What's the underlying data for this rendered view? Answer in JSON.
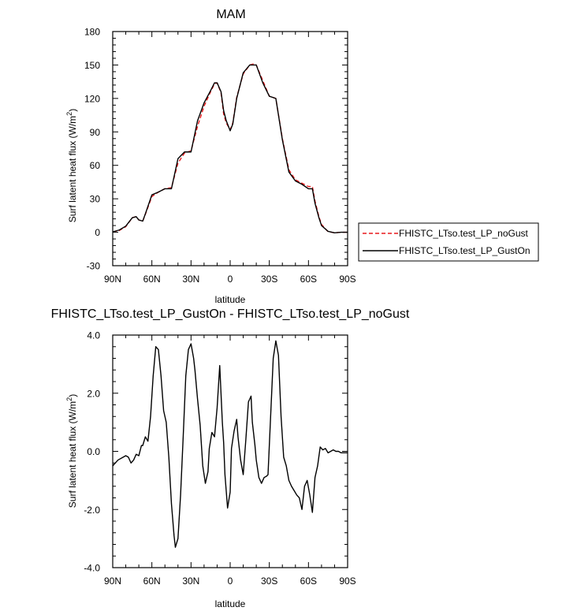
{
  "chart_data": [
    {
      "type": "line",
      "title": "MAM",
      "xlabel": "latitude",
      "ylabel_main": "Surf latent heat flux (W/m",
      "ylabel_sup": "2",
      "ylabel_close": ")",
      "xlim": [
        -90,
        90
      ],
      "ylim": [
        -30,
        180
      ],
      "x_ticks": [
        -90,
        -60,
        -30,
        0,
        30,
        60,
        90
      ],
      "x_ticklabels": [
        "90N",
        "60N",
        "30N",
        "0",
        "30S",
        "60S",
        "90S"
      ],
      "y_ticks": [
        -30,
        0,
        30,
        60,
        90,
        120,
        150,
        180
      ],
      "y_ticklabels": [
        "-30",
        "0",
        "30",
        "60",
        "90",
        "120",
        "150",
        "180"
      ],
      "legend_position": "outside-right",
      "grid": false,
      "x": [
        -90,
        -85,
        -80,
        -75,
        -72,
        -70,
        -67,
        -65,
        -60,
        -55,
        -50,
        -45,
        -40,
        -35,
        -30,
        -25,
        -20,
        -15,
        -12,
        -10,
        -7,
        -5,
        -3,
        0,
        2,
        5,
        10,
        15,
        18,
        20,
        25,
        30,
        35,
        40,
        45,
        50,
        55,
        60,
        63,
        65,
        68,
        70,
        75,
        80,
        85,
        90
      ],
      "series": [
        {
          "name": "FHISTC_LTso.test_LP_noGust",
          "color": "#e8191c",
          "dash": "dashed",
          "values": [
            0.2,
            1.5,
            5,
            13,
            14,
            11,
            10,
            16,
            32,
            36,
            39,
            40,
            62,
            71,
            73,
            95,
            113,
            126,
            133,
            134,
            125,
            106,
            98,
            92,
            98,
            121,
            142,
            150,
            151,
            150,
            136,
            122,
            120,
            84,
            56,
            47,
            44,
            41,
            41,
            28,
            14,
            7,
            0.5,
            -0.5,
            0,
            0
          ]
        },
        {
          "name": "FHISTC_LTso.test_LP_GustOn",
          "color": "#000000",
          "dash": "solid",
          "values": [
            0.4,
            2,
            5.5,
            13,
            14,
            11,
            10,
            16.5,
            33.5,
            36,
            39,
            39,
            66,
            72,
            72,
            100,
            116,
            127,
            134,
            134,
            126,
            109,
            100,
            91,
            97,
            120,
            143,
            150,
            150,
            150,
            134,
            122,
            120,
            83,
            54,
            46,
            43,
            39,
            39,
            26,
            13,
            6,
            0.8,
            -0.5,
            0,
            0
          ]
        }
      ]
    },
    {
      "type": "line",
      "title": "FHISTC_LTso.test_LP_GustOn - FHISTC_LTso.test_LP_noGust",
      "xlabel": "latitude",
      "ylabel_main": "Surf latent heat flux (W/m",
      "ylabel_sup": "2",
      "ylabel_close": ")",
      "xlim": [
        -90,
        90
      ],
      "ylim": [
        -4,
        4
      ],
      "x_ticks": [
        -90,
        -60,
        -30,
        0,
        30,
        60,
        90
      ],
      "x_ticklabels": [
        "90N",
        "60N",
        "30N",
        "0",
        "30S",
        "60S",
        "90S"
      ],
      "y_ticks": [
        -4,
        -2,
        0,
        2,
        4
      ],
      "y_ticklabels": [
        "-4.0",
        "-2.0",
        "0.0",
        "2.0",
        "4.0"
      ],
      "grid": false,
      "x": [
        -90,
        -86,
        -82,
        -80,
        -78,
        -76,
        -74,
        -72,
        -70,
        -68,
        -67,
        -65,
        -63,
        -61,
        -59,
        -57,
        -55,
        -53,
        -51,
        -49,
        -47,
        -45,
        -43,
        -42,
        -40,
        -38,
        -36,
        -34,
        -32,
        -30,
        -28,
        -27,
        -25,
        -23,
        -21,
        -19,
        -17,
        -16,
        -14,
        -12,
        -10,
        -8,
        -6,
        -5,
        -4,
        -2,
        0,
        1,
        3,
        5,
        6,
        8,
        10,
        12,
        14,
        16,
        17,
        19,
        20,
        22,
        24,
        26,
        28,
        29,
        31,
        33,
        35,
        37,
        39,
        41,
        43,
        45,
        47,
        49,
        51,
        53,
        55,
        57,
        59,
        61,
        63,
        65,
        67,
        69,
        71,
        73,
        75,
        77,
        79,
        81,
        83,
        85,
        87,
        90
      ],
      "series": [
        {
          "name": "",
          "color": "#000000",
          "dash": "solid",
          "values": [
            -0.5,
            -0.3,
            -0.2,
            -0.15,
            -0.2,
            -0.4,
            -0.3,
            -0.1,
            -0.15,
            0.2,
            0.2,
            0.5,
            0.35,
            1.2,
            2.6,
            3.6,
            3.5,
            2.6,
            1.4,
            1.0,
            -0.2,
            -1.8,
            -2.9,
            -3.3,
            -3.0,
            -1.5,
            0.5,
            2.6,
            3.5,
            3.7,
            3.2,
            2.8,
            1.8,
            0.9,
            -0.5,
            -1.1,
            -0.7,
            0.1,
            0.65,
            0.5,
            1.5,
            2.95,
            1.0,
            0.3,
            -0.8,
            -1.95,
            -1.4,
            0.1,
            0.7,
            1.1,
            0.5,
            -0.3,
            -0.8,
            0.4,
            1.7,
            1.9,
            1.0,
            0.2,
            -0.3,
            -0.9,
            -1.1,
            -0.9,
            -0.85,
            -0.8,
            1.2,
            3.2,
            3.8,
            3.3,
            1.2,
            -0.2,
            -0.5,
            -1.0,
            -1.2,
            -1.35,
            -1.5,
            -1.6,
            -2.0,
            -1.2,
            -1.0,
            -1.5,
            -2.1,
            -0.9,
            -0.5,
            0.15,
            0.05,
            0.1,
            -0.05,
            0.0,
            0.05,
            0.0,
            0.0,
            -0.05,
            -0.05,
            -0.05
          ]
        }
      ]
    }
  ]
}
